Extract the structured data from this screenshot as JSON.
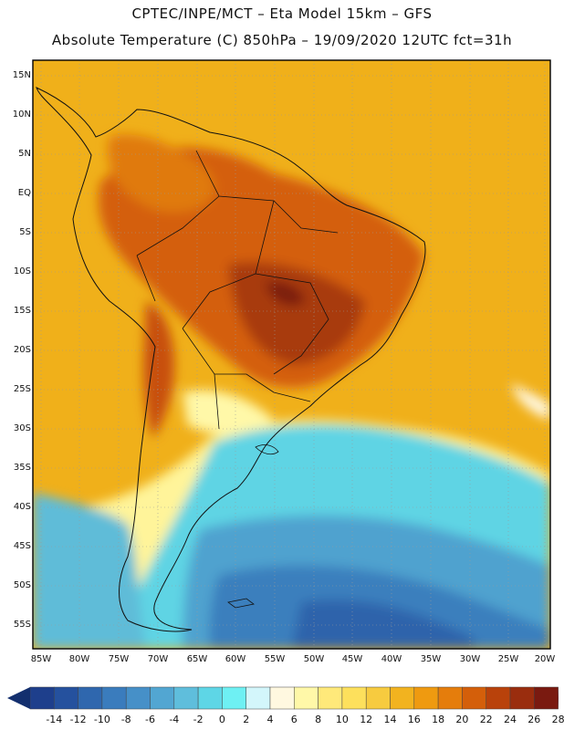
{
  "header": {
    "line1": "CPTEC/INPE/MCT –   Eta Model 15km – GFS",
    "line2": "Absolute Temperature (C) 850hPa – 19/09/2020 12UTC fct=31h"
  },
  "map": {
    "lat_labels": [
      "15N",
      "10N",
      "5N",
      "EQ",
      "5S",
      "10S",
      "15S",
      "20S",
      "25S",
      "30S",
      "35S",
      "40S",
      "45S",
      "50S",
      "55S"
    ],
    "lon_labels": [
      "85W",
      "80W",
      "75W",
      "70W",
      "65W",
      "60W",
      "55W",
      "50W",
      "45W",
      "40W",
      "35W",
      "30W",
      "25W",
      "20W"
    ]
  },
  "colorbar": {
    "labels": [
      "-14",
      "-12",
      "-10",
      "-8",
      "-6",
      "-4",
      "-2",
      "0",
      "2",
      "4",
      "6",
      "8",
      "10",
      "12",
      "14",
      "16",
      "18",
      "20",
      "22",
      "24",
      "26",
      "28"
    ],
    "colors": [
      "#1e3f8c",
      "#25519e",
      "#2f67ae",
      "#3a7cbd",
      "#4690c8",
      "#52a6d2",
      "#5fbedc",
      "#5ed6e6",
      "#6ef0f3",
      "#d3f6fb",
      "#fff8e0",
      "#fff8a8",
      "#ffe97a",
      "#fde05c",
      "#f7cb3f",
      "#f2b31f",
      "#ef9a10",
      "#e57d0c",
      "#d45f0a",
      "#b9420b",
      "#9a2d0e",
      "#7a1a10"
    ],
    "low_arrow_color": "#132f6e",
    "high_arrow_color": "#5e0d1e"
  }
}
